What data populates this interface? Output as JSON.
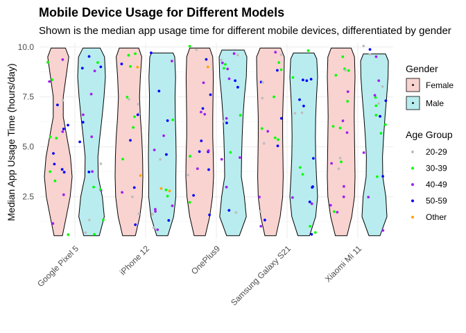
{
  "chart_data": {
    "type": "violin",
    "title": "Mobile Device Usage for Different Models",
    "subtitle": "Shown is the median app usage time for different mobile devices, differentiated by gender",
    "xlabel": "",
    "ylabel": "Median App Usage Time (hours/day)",
    "ylim": [
      0.4,
      10.2
    ],
    "yticks": [
      2.5,
      5.0,
      7.5,
      10.0
    ],
    "ytick_labels": [
      "2.5",
      "5.0",
      "7.5",
      "10.0"
    ],
    "categories": [
      "Google Pixel 5",
      "iPhone 12",
      "OnePlus9",
      "Samsung Galaxy S21",
      "Xiaomi Mi 11"
    ],
    "grid": true,
    "legend_placement": "right",
    "gender_legend": {
      "title": "Gender",
      "entries": [
        {
          "name": "Female",
          "color": "#F8D3D0"
        },
        {
          "name": "Male",
          "color": "#B9ECEE"
        }
      ]
    },
    "age_legend": {
      "title": "Age Group",
      "entries": [
        {
          "name": "20-29",
          "color": "#BEBEBE"
        },
        {
          "name": "30-39",
          "color": "#00FF00"
        },
        {
          "name": "40-49",
          "color": "#A020F0"
        },
        {
          "name": "50-59",
          "color": "#0000FF"
        },
        {
          "name": "Other",
          "color": "#FFA500"
        }
      ]
    },
    "violins": [
      {
        "category": "Google Pixel 5",
        "gender": "Female",
        "profile": [
          [
            0.55,
            0.3
          ],
          [
            1.5,
            0.58
          ],
          [
            2.5,
            0.86
          ],
          [
            3.5,
            1.0
          ],
          [
            4.5,
            0.88
          ],
          [
            5.5,
            0.62
          ],
          [
            6.5,
            0.36
          ],
          [
            7.5,
            0.36
          ],
          [
            8.5,
            0.56
          ],
          [
            9.5,
            0.76
          ],
          [
            9.95,
            0.52
          ]
        ]
      },
      {
        "category": "Google Pixel 5",
        "gender": "Male",
        "profile": [
          [
            0.55,
            0.56
          ],
          [
            1.5,
            0.92
          ],
          [
            2.5,
            0.78
          ],
          [
            3.5,
            0.48
          ],
          [
            4.5,
            0.46
          ],
          [
            5.5,
            0.6
          ],
          [
            6.5,
            0.76
          ],
          [
            7.5,
            0.9
          ],
          [
            8.5,
            1.0
          ],
          [
            9.5,
            0.94
          ],
          [
            9.95,
            0.62
          ]
        ]
      },
      {
        "category": "iPhone 12",
        "gender": "Female",
        "profile": [
          [
            0.55,
            0.46
          ],
          [
            1.5,
            0.78
          ],
          [
            2.5,
            0.96
          ],
          [
            3.5,
            1.0
          ],
          [
            4.5,
            0.98
          ],
          [
            5.5,
            0.92
          ],
          [
            6.5,
            0.82
          ],
          [
            7.5,
            0.76
          ],
          [
            8.5,
            0.82
          ],
          [
            9.5,
            0.92
          ],
          [
            9.95,
            0.7
          ]
        ]
      },
      {
        "category": "iPhone 12",
        "gender": "Male",
        "profile": [
          [
            0.55,
            0.4
          ],
          [
            1.5,
            0.82
          ],
          [
            2.5,
            0.98
          ],
          [
            3.5,
            0.98
          ],
          [
            4.5,
            1.0
          ],
          [
            5.5,
            0.98
          ],
          [
            6.5,
            0.94
          ],
          [
            7.5,
            0.92
          ],
          [
            8.5,
            0.96
          ],
          [
            9.5,
            0.9
          ],
          [
            9.7,
            0.78
          ]
        ]
      },
      {
        "category": "OnePlus9",
        "gender": "Female",
        "profile": [
          [
            0.55,
            0.4
          ],
          [
            1.5,
            0.72
          ],
          [
            2.5,
            0.92
          ],
          [
            3.5,
            1.0
          ],
          [
            4.5,
            0.98
          ],
          [
            5.5,
            0.94
          ],
          [
            6.5,
            0.94
          ],
          [
            7.5,
            0.96
          ],
          [
            8.5,
            0.98
          ],
          [
            9.5,
            0.94
          ],
          [
            9.95,
            0.72
          ]
        ]
      },
      {
        "category": "OnePlus9",
        "gender": "Male",
        "profile": [
          [
            0.55,
            0.46
          ],
          [
            1.5,
            0.96
          ],
          [
            2.5,
            0.82
          ],
          [
            3.5,
            0.6
          ],
          [
            4.5,
            0.62
          ],
          [
            5.5,
            0.66
          ],
          [
            6.5,
            0.72
          ],
          [
            7.5,
            0.82
          ],
          [
            8.5,
            0.96
          ],
          [
            9.5,
            1.0
          ],
          [
            9.85,
            0.8
          ]
        ]
      },
      {
        "category": "Samsung Galaxy S21",
        "gender": "Female",
        "profile": [
          [
            0.55,
            0.4
          ],
          [
            1.5,
            0.7
          ],
          [
            2.5,
            0.88
          ],
          [
            3.5,
            0.92
          ],
          [
            4.5,
            0.9
          ],
          [
            5.5,
            0.88
          ],
          [
            6.5,
            0.88
          ],
          [
            7.5,
            0.92
          ],
          [
            8.5,
            0.98
          ],
          [
            9.5,
            1.0
          ],
          [
            9.95,
            0.74
          ]
        ]
      },
      {
        "category": "Samsung Galaxy S21",
        "gender": "Male",
        "profile": [
          [
            0.55,
            0.42
          ],
          [
            1.5,
            0.86
          ],
          [
            2.5,
            1.0
          ],
          [
            3.5,
            0.92
          ],
          [
            4.5,
            0.86
          ],
          [
            5.5,
            0.84
          ],
          [
            6.5,
            0.86
          ],
          [
            7.5,
            0.92
          ],
          [
            8.5,
            1.0
          ],
          [
            9.4,
            0.94
          ],
          [
            9.7,
            0.74
          ]
        ]
      },
      {
        "category": "Xiaomi Mi 11",
        "gender": "Female",
        "profile": [
          [
            0.55,
            0.42
          ],
          [
            1.5,
            0.76
          ],
          [
            2.5,
            0.96
          ],
          [
            3.5,
            1.0
          ],
          [
            4.5,
            0.98
          ],
          [
            5.5,
            0.96
          ],
          [
            6.5,
            0.94
          ],
          [
            7.5,
            0.96
          ],
          [
            8.5,
            1.0
          ],
          [
            9.5,
            0.96
          ],
          [
            9.95,
            0.72
          ]
        ]
      },
      {
        "category": "Xiaomi Mi 11",
        "gender": "Male",
        "profile": [
          [
            0.55,
            0.4
          ],
          [
            1.5,
            0.9
          ],
          [
            2.5,
            0.82
          ],
          [
            3.5,
            0.6
          ],
          [
            4.5,
            0.58
          ],
          [
            5.5,
            0.66
          ],
          [
            6.5,
            0.76
          ],
          [
            7.5,
            0.88
          ],
          [
            8.5,
            0.98
          ],
          [
            9.3,
            1.0
          ],
          [
            9.65,
            0.8
          ]
        ]
      }
    ],
    "points_per_violin": 20,
    "point_seed": 7
  }
}
